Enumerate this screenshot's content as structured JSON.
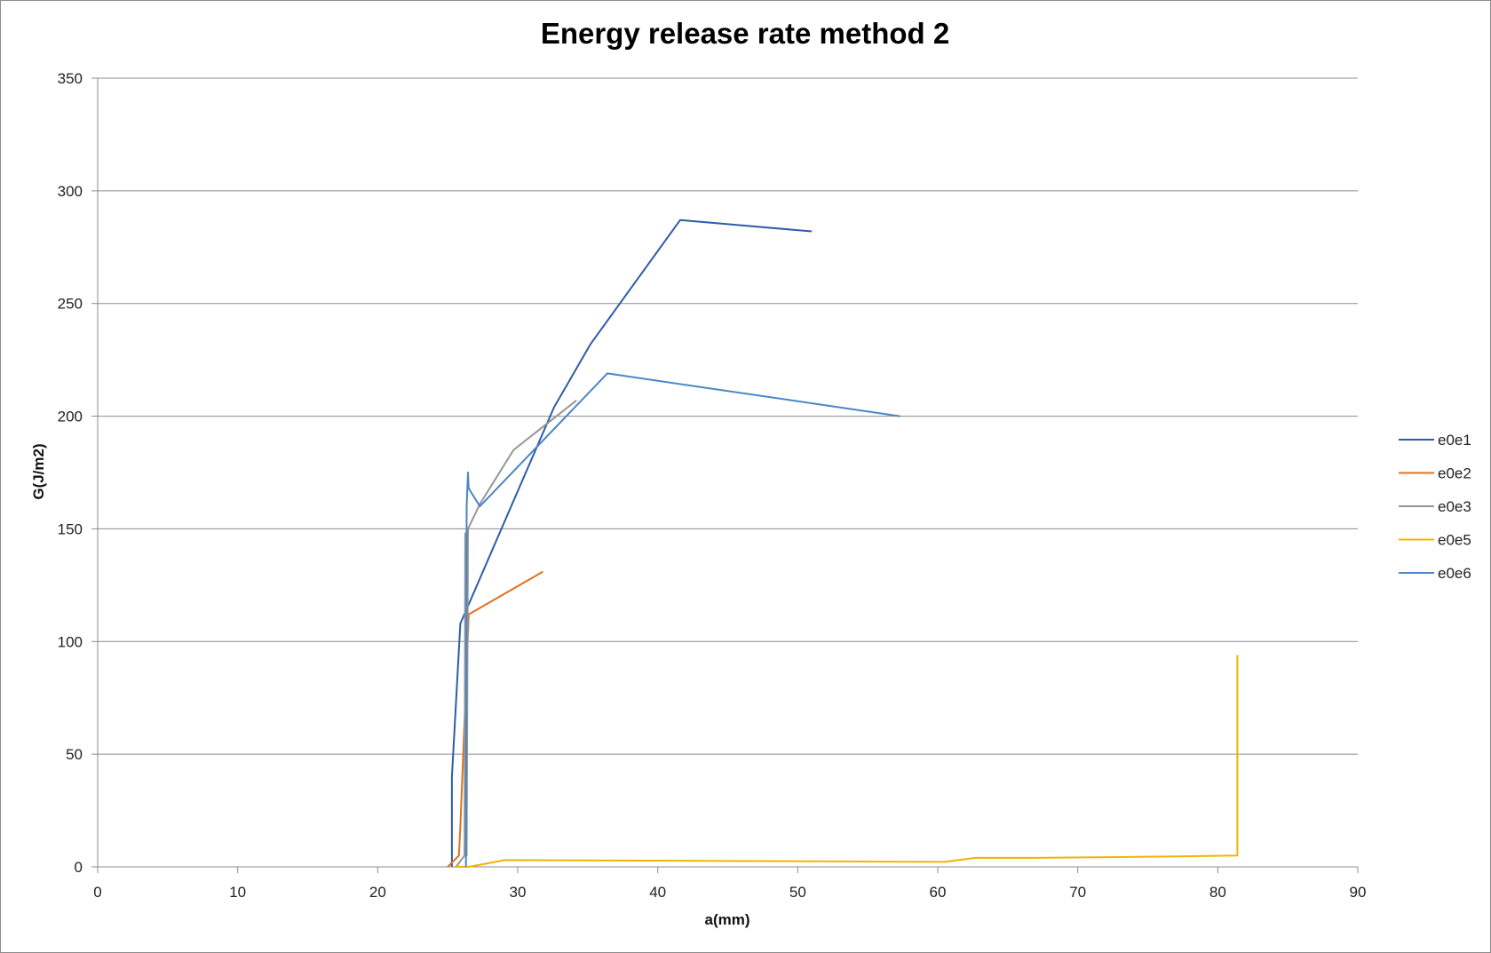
{
  "chart_data": {
    "type": "line",
    "title": "Energy release rate method 2",
    "xlabel": "a(mm)",
    "ylabel": "G(J/m2)",
    "xlim": [
      0,
      90
    ],
    "ylim": [
      0,
      350
    ],
    "x_ticks": [
      0,
      10,
      20,
      30,
      40,
      50,
      60,
      70,
      80,
      90
    ],
    "y_ticks": [
      0,
      50,
      100,
      150,
      200,
      250,
      300,
      350
    ],
    "x_tick_labels": [
      "0",
      "10",
      "20",
      "30",
      "40",
      "50",
      "60",
      "70",
      "80",
      "90"
    ],
    "y_tick_labels": [
      "0",
      "50",
      "100",
      "150",
      "200",
      "250",
      "300",
      "350"
    ],
    "grid": "horizontal",
    "legend_position": "right",
    "series": [
      {
        "name": "e0e1",
        "color": "#2e5ca8",
        "points": [
          [
            25.3,
            0
          ],
          [
            25.3,
            40
          ],
          [
            25.9,
            108
          ],
          [
            26.4,
            115
          ],
          [
            32.6,
            204
          ],
          [
            35.2,
            232
          ],
          [
            41.6,
            287
          ],
          [
            51.0,
            282
          ]
        ]
      },
      {
        "name": "e0e2",
        "color": "#e0701e",
        "points": [
          [
            25.0,
            0
          ],
          [
            25.8,
            5
          ],
          [
            25.9,
            18
          ],
          [
            26.5,
            112
          ],
          [
            31.8,
            131
          ]
        ]
      },
      {
        "name": "e0e3",
        "color": "#959595",
        "points": [
          [
            25.6,
            0
          ],
          [
            26.2,
            5
          ],
          [
            26.25,
            148
          ],
          [
            26.35,
            5
          ],
          [
            26.45,
            150
          ],
          [
            27.3,
            161
          ],
          [
            29.7,
            185
          ],
          [
            34.2,
            207
          ]
        ]
      },
      {
        "name": "e0e5",
        "color": "#f0b400",
        "points": [
          [
            25.5,
            0
          ],
          [
            26.5,
            0
          ],
          [
            29.1,
            3
          ],
          [
            37,
            2.8
          ],
          [
            45,
            2.6
          ],
          [
            53,
            2.4
          ],
          [
            60.5,
            2.2
          ],
          [
            62.7,
            4
          ],
          [
            67,
            4
          ],
          [
            72,
            4.3
          ],
          [
            77,
            4.6
          ],
          [
            81.4,
            5
          ],
          [
            81.4,
            94
          ]
        ]
      },
      {
        "name": "e0e6",
        "color": "#4a86c6",
        "points": [
          [
            26.3,
            0
          ],
          [
            26.35,
            160
          ],
          [
            26.45,
            175
          ],
          [
            26.5,
            168
          ],
          [
            27.3,
            160
          ],
          [
            36.4,
            219
          ],
          [
            57.3,
            200
          ]
        ]
      }
    ]
  }
}
